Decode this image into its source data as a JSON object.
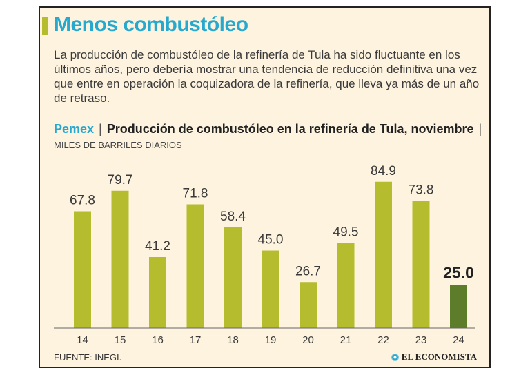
{
  "header": {
    "title": "Menos combustóleo",
    "intro": "La producción de combustóleo de la refinería de Tula ha sido fluctuante en los últimos años, pero debería mostrar una tendencia de reducción definitiva una vez que entre en operación la coquizadora de la refinería, que lleva ya más de un año de retraso."
  },
  "chart_head": {
    "source_name": "Pemex",
    "title_line": "Producción de combustóleo en la refinería de Tula, noviembre",
    "unit": "MILES DE BARRILES DIARIOS"
  },
  "footer": {
    "source": "FUENTE: INEGI.",
    "brand": "EL ECONOMISTA"
  },
  "colors": {
    "bar": "#b5bc2e",
    "bar_highlight": "#5d7d2a",
    "title": "#27a9cf",
    "background": "#fdf3df"
  },
  "chart_data": {
    "type": "bar",
    "title": "Producción de combustóleo en la refinería de Tula, noviembre",
    "ylabel": "MILES DE BARRILES DIARIOS",
    "categories": [
      "14",
      "15",
      "16",
      "17",
      "18",
      "19",
      "20",
      "21",
      "22",
      "23",
      "24"
    ],
    "values": [
      67.8,
      79.7,
      41.2,
      71.8,
      58.4,
      45.0,
      26.7,
      49.5,
      84.9,
      73.8,
      25.0
    ],
    "value_labels": [
      "67.8",
      "79.7",
      "41.2",
      "71.8",
      "58.4",
      "45.0",
      "26.7",
      "49.5",
      "84.9",
      "73.8",
      "25.0"
    ],
    "highlight_index": 10,
    "ylim": [
      0,
      100
    ],
    "grid": false,
    "legend": "none"
  }
}
